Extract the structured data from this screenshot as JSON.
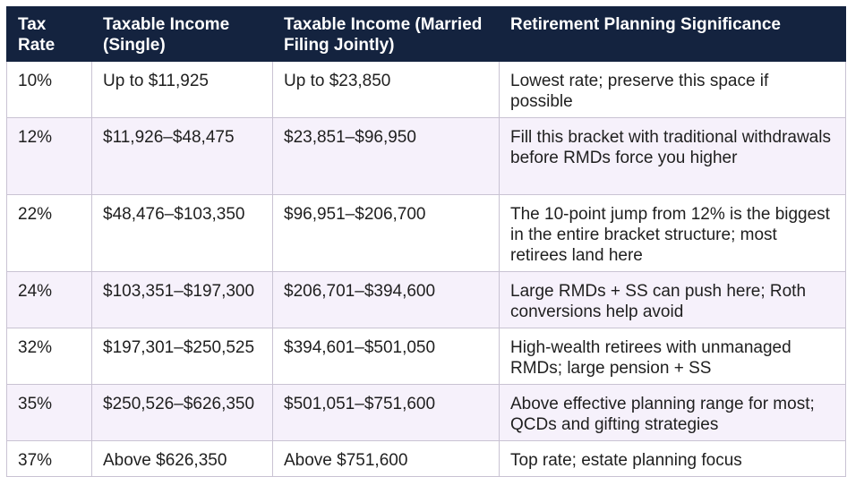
{
  "table": {
    "header": [
      "Tax Rate",
      "Taxable Income (Single)",
      "Taxable Income (Married Filing Jointly)",
      "Retirement Planning Significance"
    ],
    "rows": [
      [
        "10%",
        "Up to $11,925",
        "Up to $23,850",
        "Lowest rate; preserve this space if possible"
      ],
      [
        "12%",
        "$11,926–$48,475",
        "$23,851–$96,950",
        "Fill this bracket with traditional withdrawals before RMDs force you higher"
      ],
      [
        "22%",
        "$48,476–$103,350",
        "$96,951–$206,700",
        "The 10-point jump from 12% is the biggest in the entire bracket structure; most retirees land here"
      ],
      [
        "24%",
        "$103,351–$197,300",
        "$206,701–$394,600",
        "Large RMDs + SS can push here; Roth conversions help avoid"
      ],
      [
        "32%",
        "$197,301–$250,525",
        "$394,601–$501,050",
        "High-wealth retirees with unmanaged RMDs; large pension + SS"
      ],
      [
        "35%",
        "$250,526–$626,350",
        "$501,051–$751,600",
        "Above effective planning range for most; QCDs and gifting strategies"
      ],
      [
        "37%",
        "Above $626,350",
        "Above $751,600",
        "Top rate; estate planning focus"
      ]
    ]
  }
}
